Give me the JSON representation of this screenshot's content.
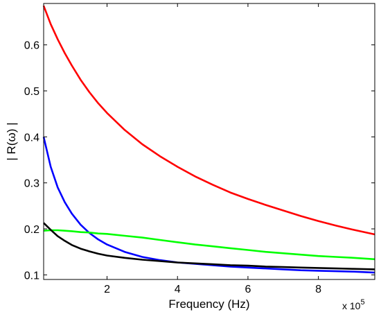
{
  "chart_data": {
    "type": "line",
    "title": "",
    "xlabel": "Frequency (Hz)",
    "ylabel": "| R(ω) |",
    "x_exponent_label": "x 10",
    "x_exponent_power": "5",
    "x_scale": 100000,
    "xlim": [
      0.2,
      9.6
    ],
    "ylim": [
      0.09,
      0.69
    ],
    "grid": false,
    "legend": "none",
    "x_ticks": [
      2,
      4,
      6,
      8
    ],
    "x_tick_labels": [
      "2",
      "4",
      "6",
      "8"
    ],
    "y_ticks": [
      0.1,
      0.2,
      0.3,
      0.4,
      0.5,
      0.6
    ],
    "y_tick_labels": [
      "0.1",
      "0.2",
      "0.3",
      "0.4",
      "0.5",
      "0.6"
    ],
    "x": [
      0.2,
      0.4,
      0.6,
      0.8,
      1.0,
      1.25,
      1.5,
      1.75,
      2.0,
      2.5,
      3.0,
      3.5,
      4.0,
      4.5,
      5.0,
      5.5,
      6.0,
      6.5,
      7.0,
      7.5,
      8.0,
      8.5,
      9.0,
      9.6
    ],
    "series": [
      {
        "color": "#ff0000",
        "values": [
          0.685,
          0.645,
          0.612,
          0.582,
          0.555,
          0.524,
          0.497,
          0.473,
          0.452,
          0.415,
          0.384,
          0.358,
          0.335,
          0.314,
          0.296,
          0.279,
          0.265,
          0.252,
          0.24,
          0.228,
          0.217,
          0.207,
          0.198,
          0.188
        ]
      },
      {
        "color": "#0000ff",
        "values": [
          0.4,
          0.335,
          0.29,
          0.258,
          0.233,
          0.209,
          0.191,
          0.177,
          0.166,
          0.15,
          0.139,
          0.132,
          0.127,
          0.124,
          0.121,
          0.118,
          0.116,
          0.114,
          0.112,
          0.11,
          0.109,
          0.108,
          0.107,
          0.105
        ]
      },
      {
        "color": "#00ff00",
        "values": [
          0.196,
          0.197,
          0.197,
          0.196,
          0.195,
          0.193,
          0.192,
          0.19,
          0.189,
          0.185,
          0.181,
          0.176,
          0.171,
          0.166,
          0.162,
          0.158,
          0.154,
          0.15,
          0.147,
          0.144,
          0.141,
          0.139,
          0.137,
          0.134
        ]
      },
      {
        "color": "#000000",
        "values": [
          0.213,
          0.198,
          0.184,
          0.174,
          0.165,
          0.157,
          0.151,
          0.146,
          0.142,
          0.137,
          0.133,
          0.13,
          0.127,
          0.125,
          0.123,
          0.121,
          0.12,
          0.118,
          0.117,
          0.116,
          0.115,
          0.114,
          0.113,
          0.112
        ]
      }
    ]
  }
}
